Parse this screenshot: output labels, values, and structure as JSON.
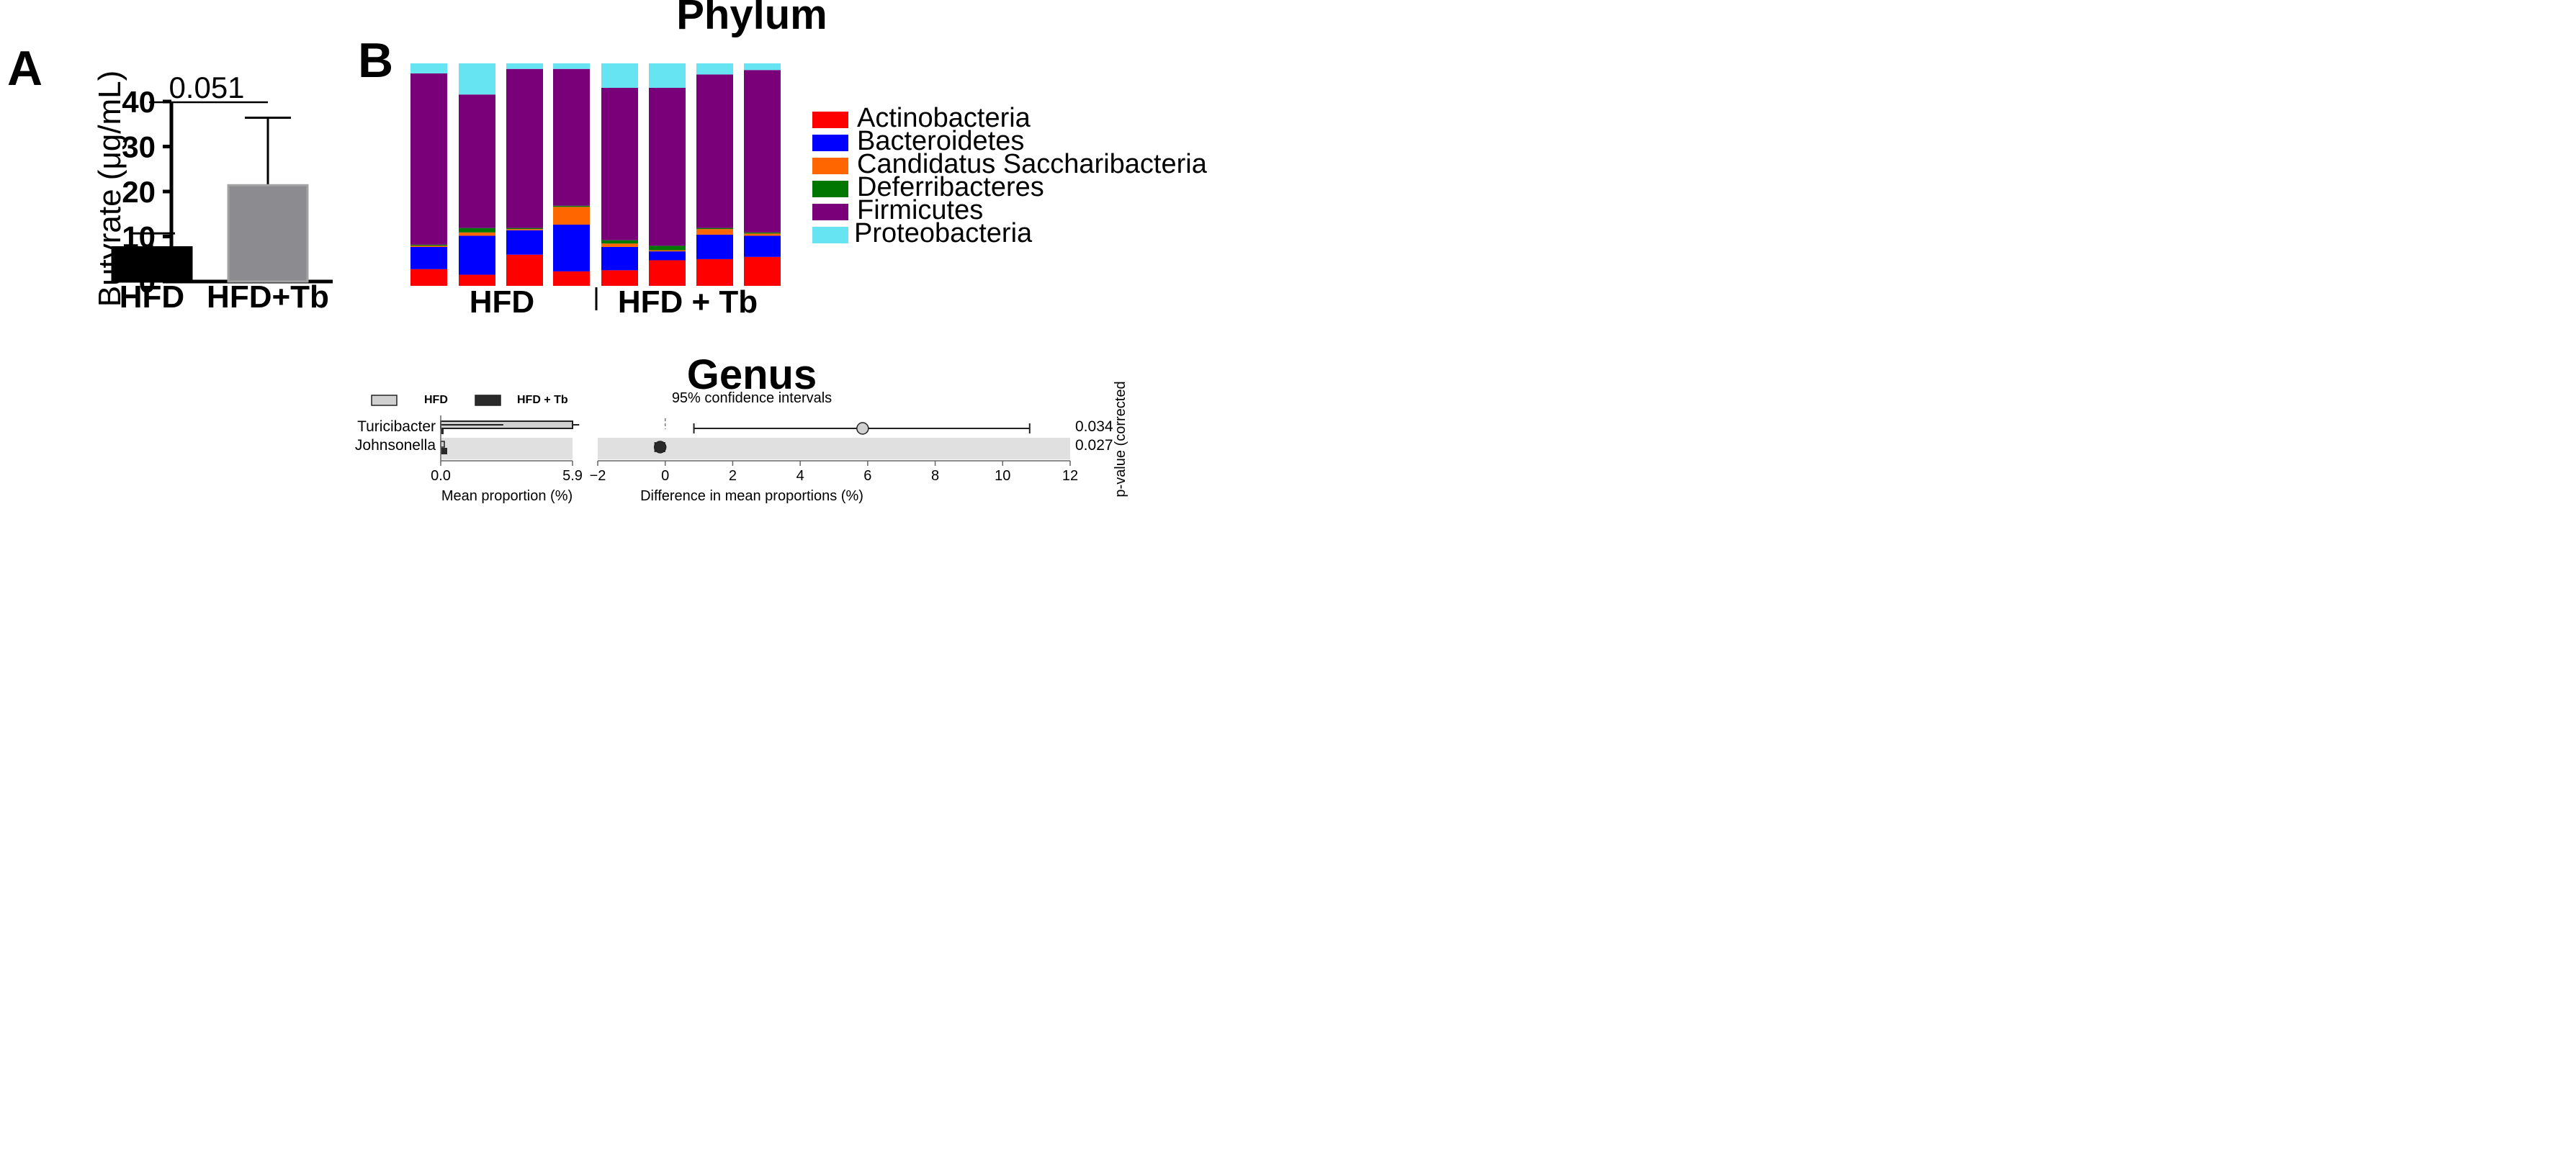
{
  "panel_a": {
    "letter": "A",
    "ylabel": "Butyrate (μg/mL)",
    "significance": "0.051"
  },
  "panel_b": {
    "letter": "B",
    "title": "Phylum",
    "group_labels": [
      "HFD",
      "HFD + Tb"
    ]
  },
  "genus": {
    "title": "Genus",
    "legend": [
      "HFD",
      "HFD + Tb"
    ],
    "ci_title": "95% confidence intervals",
    "left_xlabel": "Mean proportion (%)",
    "right_xlabel": "Difference in mean proportions (%)",
    "right_ylabel": "p-value (corrected",
    "left_ticks": [
      "0.0",
      "5.9"
    ]
  },
  "colors": {
    "Actinobacteria": "#ff0000",
    "Bacteroidetes": "#0000ff",
    "Candidatus Saccharibacteria": "#ff6600",
    "Deferribacteres": "#007700",
    "Firmicutes": "#7a007a",
    "Proteobacteria": "#66e4f2",
    "hfd_bar": "#000000",
    "hfdtb_bar": "#8c8c90",
    "genus_hfd": "#d0d0d0",
    "genus_hfdtb": "#2a2a2a",
    "band": "#e0e0e0"
  },
  "chart_data": [
    {
      "type": "bar",
      "categories": [
        "HFD",
        "HFD+Tb"
      ],
      "values": [
        7.6,
        21.4
      ],
      "errors": [
        3.1,
        15.0
      ],
      "xlabel": "",
      "ylabel": "Butyrate (μg/mL)",
      "ylim": [
        0,
        40
      ],
      "yticks": [
        0,
        10,
        20,
        30,
        40
      ],
      "annotation": "0.051"
    },
    {
      "type": "bar",
      "stacked": true,
      "percent": true,
      "title": "Phylum",
      "groups": [
        {
          "name": "HFD",
          "samples": 4
        },
        {
          "name": "HFD + Tb",
          "samples": 4
        }
      ],
      "series": [
        {
          "name": "Actinobacteria",
          "values": [
            7.5,
            5.0,
            14.0,
            6.5,
            7.0,
            11.5,
            12.0,
            13.0
          ]
        },
        {
          "name": "Bacteroidetes",
          "values": [
            10.0,
            17.5,
            11.0,
            21.0,
            10.5,
            4.0,
            11.0,
            9.5
          ]
        },
        {
          "name": "Candidatus Saccharibacteria",
          "values": [
            0.5,
            1.5,
            0.5,
            8.0,
            1.5,
            0.5,
            2.5,
            1.0
          ]
        },
        {
          "name": "Deferribacteres",
          "values": [
            0.5,
            2.0,
            0.5,
            0.5,
            1.5,
            2.0,
            0.5,
            0.5
          ]
        },
        {
          "name": "Firmicutes",
          "values": [
            77.0,
            60.0,
            71.5,
            61.5,
            68.5,
            71.0,
            69.0,
            73.0
          ]
        },
        {
          "name": "Proteobacteria",
          "values": [
            4.5,
            14.0,
            2.5,
            2.5,
            11.0,
            11.0,
            5.0,
            3.0
          ]
        }
      ],
      "legend_position": "right"
    },
    {
      "type": "bar",
      "orientation": "horizontal",
      "categories": [
        "Turicibacter",
        "Johnsonella"
      ],
      "series": [
        {
          "name": "HFD",
          "values": [
            5.9,
            0.05
          ]
        },
        {
          "name": "HFD + Tb",
          "values": [
            0.05,
            0.15
          ]
        }
      ],
      "errors": {
        "HFD": [
          0.3,
          0.0
        ],
        "HFD + Tb": [
          0.0,
          0.0
        ]
      },
      "inner_line": 2.8,
      "xlabel": "Mean proportion (%)",
      "xlim": [
        0,
        5.9
      ]
    },
    {
      "type": "scatter",
      "categories": [
        "Turicibacter",
        "Johnsonella"
      ],
      "values": [
        5.85,
        -0.15
      ],
      "ci_low": [
        0.85,
        -0.3
      ],
      "ci_high": [
        10.8,
        -0.02
      ],
      "title": "95% confidence intervals",
      "xlabel": "Difference in mean proportions (%)",
      "xlim": [
        -2,
        12
      ],
      "xticks": [
        -2,
        0,
        2,
        4,
        6,
        8,
        10,
        12
      ],
      "p_values": [
        "0.034",
        "0.027"
      ],
      "ylabel": "p-value (corrected"
    }
  ]
}
